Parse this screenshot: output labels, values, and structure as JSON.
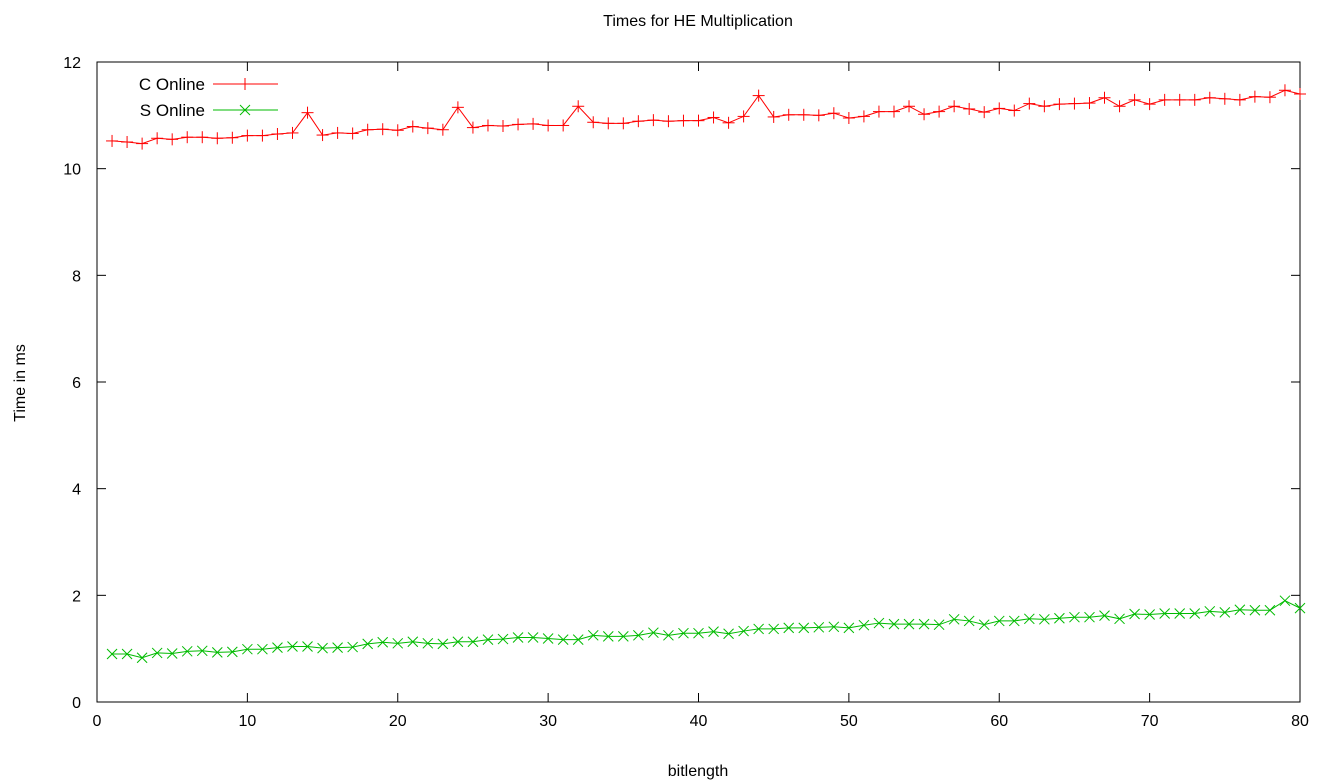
{
  "chart_data": {
    "type": "line",
    "title": "Times for HE Multiplication",
    "xlabel": "bitlength",
    "ylabel": "Time in ms",
    "xlim": [
      0,
      80
    ],
    "ylim": [
      0,
      12
    ],
    "xticks": [
      0,
      10,
      20,
      30,
      40,
      50,
      60,
      70,
      80
    ],
    "yticks": [
      0,
      2,
      4,
      6,
      8,
      10,
      12
    ],
    "grid": false,
    "legend_position": "top-left",
    "x": [
      1,
      2,
      3,
      4,
      5,
      6,
      7,
      8,
      9,
      10,
      11,
      12,
      13,
      14,
      15,
      16,
      17,
      18,
      19,
      20,
      21,
      22,
      23,
      24,
      25,
      26,
      27,
      28,
      29,
      30,
      31,
      32,
      33,
      34,
      35,
      36,
      37,
      38,
      39,
      40,
      41,
      42,
      43,
      44,
      45,
      46,
      47,
      48,
      49,
      50,
      51,
      52,
      53,
      54,
      55,
      56,
      57,
      58,
      59,
      60,
      61,
      62,
      63,
      64,
      65,
      66,
      67,
      68,
      69,
      70,
      71,
      72,
      73,
      74,
      75,
      76,
      77,
      78,
      79,
      80
    ],
    "series": [
      {
        "name": "C Online",
        "color": "#ff0000",
        "marker": "plus",
        "values": [
          10.52,
          10.5,
          10.47,
          10.57,
          10.55,
          10.59,
          10.59,
          10.57,
          10.58,
          10.62,
          10.62,
          10.65,
          10.67,
          11.05,
          10.63,
          10.67,
          10.66,
          10.73,
          10.74,
          10.72,
          10.79,
          10.76,
          10.73,
          11.15,
          10.77,
          10.81,
          10.8,
          10.83,
          10.84,
          10.81,
          10.81,
          11.17,
          10.87,
          10.85,
          10.85,
          10.89,
          10.91,
          10.89,
          10.9,
          10.9,
          10.96,
          10.86,
          10.98,
          11.37,
          10.97,
          11.01,
          11.01,
          11.0,
          11.04,
          10.95,
          10.98,
          11.07,
          11.07,
          11.17,
          11.02,
          11.07,
          11.17,
          11.12,
          11.06,
          11.13,
          11.09,
          11.22,
          11.17,
          11.21,
          11.22,
          11.23,
          11.33,
          11.17,
          11.29,
          11.21,
          11.29,
          11.29,
          11.29,
          11.33,
          11.31,
          11.29,
          11.35,
          11.34,
          11.47,
          11.4
        ]
      },
      {
        "name": "S Online",
        "color": "#00bb00",
        "marker": "cross",
        "values": [
          0.9,
          0.9,
          0.83,
          0.92,
          0.91,
          0.95,
          0.96,
          0.93,
          0.94,
          0.99,
          0.99,
          1.02,
          1.04,
          1.04,
          1.01,
          1.02,
          1.03,
          1.09,
          1.12,
          1.1,
          1.13,
          1.1,
          1.09,
          1.13,
          1.13,
          1.17,
          1.18,
          1.21,
          1.21,
          1.19,
          1.17,
          1.17,
          1.25,
          1.23,
          1.23,
          1.25,
          1.3,
          1.25,
          1.29,
          1.29,
          1.32,
          1.28,
          1.33,
          1.37,
          1.37,
          1.39,
          1.39,
          1.4,
          1.41,
          1.39,
          1.44,
          1.48,
          1.46,
          1.46,
          1.46,
          1.45,
          1.55,
          1.52,
          1.45,
          1.52,
          1.52,
          1.56,
          1.55,
          1.57,
          1.59,
          1.59,
          1.62,
          1.56,
          1.65,
          1.64,
          1.66,
          1.66,
          1.66,
          1.7,
          1.68,
          1.73,
          1.72,
          1.72,
          1.9,
          1.76
        ]
      }
    ]
  }
}
